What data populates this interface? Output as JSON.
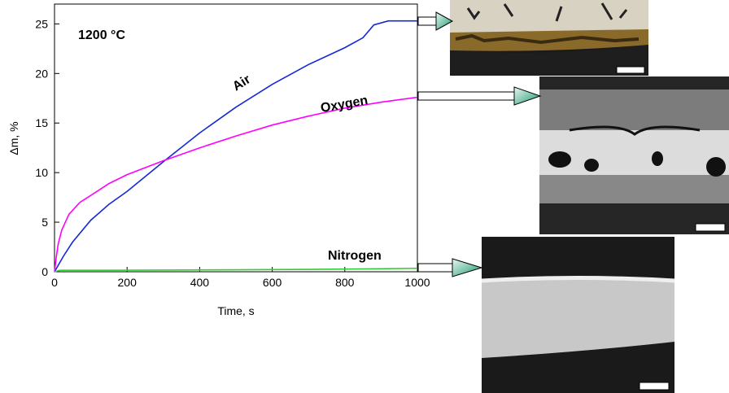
{
  "chart_data": {
    "type": "line",
    "title": "1200 °C",
    "xlabel": "Time, s",
    "ylabel": "Δm, %",
    "xlim": [
      0,
      1000
    ],
    "ylim": [
      0,
      27
    ],
    "xticks": [
      0,
      200,
      400,
      600,
      800,
      1000
    ],
    "yticks": [
      0,
      5,
      10,
      15,
      20,
      25
    ],
    "series": [
      {
        "name": "Air",
        "color": "#1428d8",
        "x": [
          0,
          25,
          50,
          100,
          150,
          200,
          300,
          400,
          500,
          600,
          700,
          800,
          850,
          880,
          920,
          1000
        ],
        "values": [
          0,
          1.6,
          3,
          5.2,
          6.8,
          8.1,
          11.1,
          14,
          16.6,
          18.9,
          20.9,
          22.6,
          23.6,
          24.9,
          25.3,
          25.3
        ]
      },
      {
        "name": "Oxygen",
        "color": "#ff00ff",
        "x": [
          0,
          5,
          10,
          20,
          40,
          70,
          100,
          150,
          200,
          300,
          400,
          500,
          600,
          700,
          800,
          900,
          1000
        ],
        "values": [
          0,
          1.5,
          2.8,
          4.2,
          5.8,
          7,
          7.7,
          8.9,
          9.8,
          11.2,
          12.5,
          13.7,
          14.8,
          15.7,
          16.5,
          17.1,
          17.6
        ]
      },
      {
        "name": "Nitrogen",
        "color": "#33cc33",
        "x": [
          0,
          15,
          100,
          300,
          500,
          700,
          900,
          1000
        ],
        "values": [
          0,
          0.15,
          0.15,
          0.17,
          0.2,
          0.24,
          0.3,
          0.35
        ]
      }
    ]
  }
}
